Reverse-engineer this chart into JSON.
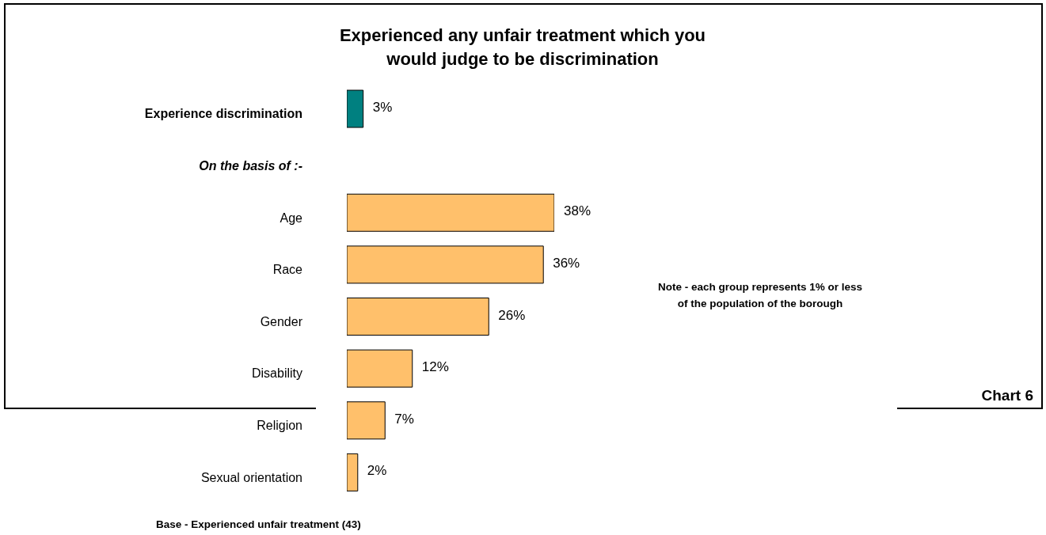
{
  "chart_data": {
    "type": "bar",
    "orientation": "horizontal",
    "title": "Experienced any unfair treatment which you\nwould judge to be discrimination",
    "categories": [
      "Experience discrimination",
      "On the basis of :-",
      "Age",
      "Race",
      "Gender",
      "Disability",
      "Religion",
      "Sexual orientation"
    ],
    "values": [
      3,
      null,
      38,
      36,
      26,
      12,
      7,
      2
    ],
    "colors": [
      "#008080",
      null,
      "#ffc06b",
      "#ffc06b",
      "#ffc06b",
      "#ffc06b",
      "#ffc06b",
      "#ffc06b"
    ],
    "value_labels": [
      "3%",
      null,
      "38%",
      "36%",
      "26%",
      "12%",
      "7%",
      "2%"
    ],
    "annotations": [
      "Note - each group represents 1% or less\nof the population of the borough",
      "Chart 6",
      "Base - Experienced unfair treatment (43)"
    ],
    "grid": false,
    "legend": false
  }
}
